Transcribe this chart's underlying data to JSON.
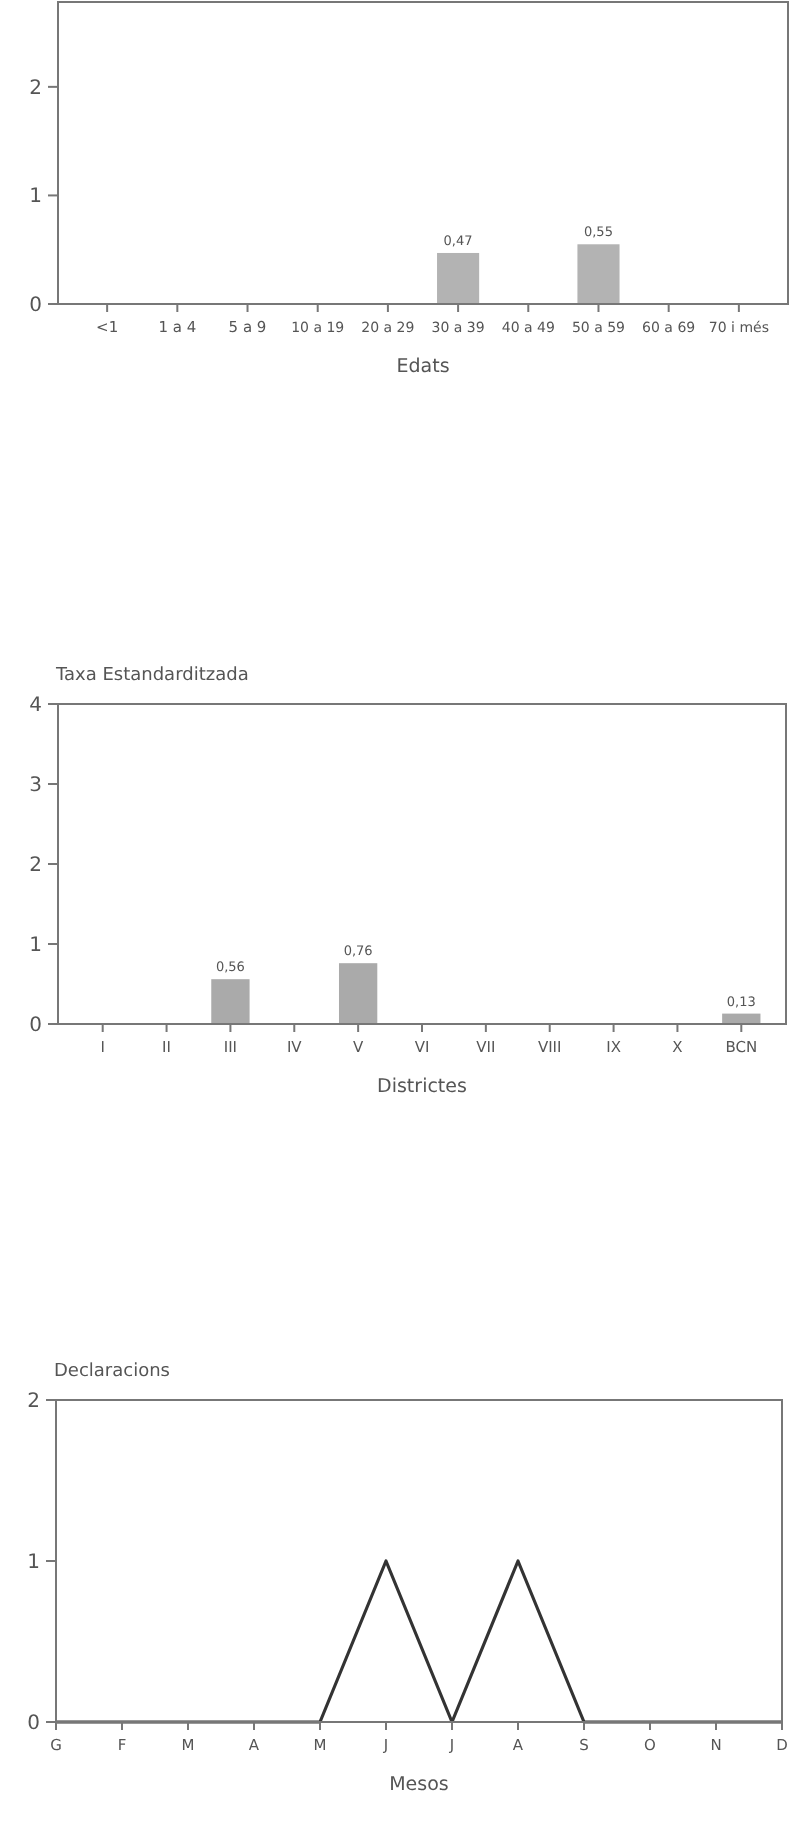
{
  "chart_data": [
    {
      "type": "bar",
      "xlabel": "Edats",
      "categories": [
        "<1",
        "1 a 4",
        "5 a 9",
        "10 a 19",
        "20 a 29",
        "30 a 39",
        "40 a 49",
        "50 a 59",
        "60 a 69",
        "70 i més"
      ],
      "values": [
        0,
        0,
        0,
        0,
        0,
        0.47,
        0,
        0.55,
        0,
        0
      ],
      "value_labels": [
        null,
        null,
        null,
        null,
        null,
        "0,47",
        null,
        "0,55",
        null,
        null
      ],
      "color": "#b3b3b3",
      "ylim": [
        0,
        2.8
      ],
      "yticks": [
        0,
        1,
        2
      ]
    },
    {
      "type": "bar",
      "ylabel": "Taxa Estandarditzada",
      "xlabel": "Districtes",
      "categories": [
        "I",
        "II",
        "III",
        "IV",
        "V",
        "VI",
        "VII",
        "VIII",
        "IX",
        "X",
        "BCN"
      ],
      "values": [
        0,
        0,
        0.56,
        0,
        0.76,
        0,
        0,
        0,
        0,
        0,
        0.13
      ],
      "value_labels": [
        null,
        null,
        "0,56",
        null,
        "0,76",
        null,
        null,
        null,
        null,
        null,
        "0,13"
      ],
      "color": "#aaaaaa",
      "ylim": [
        0,
        4
      ],
      "yticks": [
        0,
        1,
        2,
        3,
        4
      ]
    },
    {
      "type": "line",
      "ylabel": "Declaracions",
      "xlabel": "Mesos",
      "categories": [
        "G",
        "F",
        "M",
        "A",
        "M",
        "J",
        "J",
        "A",
        "S",
        "O",
        "N",
        "D"
      ],
      "values": [
        0,
        0,
        0,
        0,
        0,
        1,
        0,
        1,
        0,
        0,
        0,
        0
      ],
      "color": "#333333",
      "ylim": [
        0,
        2
      ],
      "yticks": [
        0,
        1,
        2
      ],
      "line_style": "solid"
    }
  ]
}
